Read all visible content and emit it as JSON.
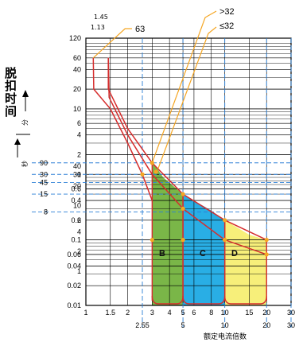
{
  "chart_data": {
    "type": "line",
    "title": "",
    "xlabel": "额定电流倍数",
    "ylabel": "脱扣时间",
    "ylabel_units": {
      "minutes": "分",
      "seconds": "秒"
    },
    "x_scale": "log",
    "y_scale": "log",
    "xlim": [
      1,
      30
    ],
    "ylim": [
      0.01,
      120
    ],
    "x_ticks": [
      1,
      1.5,
      2,
      3,
      4,
      5,
      6,
      8,
      10,
      15,
      20,
      30
    ],
    "x_tick_labels": [
      "1",
      "1.5",
      "2",
      "3",
      "4",
      "5",
      "6",
      "8",
      "10",
      "15",
      "20",
      "30"
    ],
    "y_ticks": [
      120,
      60,
      40,
      20,
      10,
      6,
      4,
      2,
      1,
      0.6,
      0.4,
      0.2,
      0.1,
      0.06,
      0.04,
      0.02,
      0.01
    ],
    "y_tick_labels": [
      "120",
      "60",
      "40",
      "20",
      "10",
      "6",
      "4",
      "2",
      "1",
      "0.6",
      "0.4",
      "0.2",
      "0.1",
      "0.06",
      "0.04",
      "0.02",
      "0.01"
    ],
    "y_ticks_seconds": [
      40,
      30,
      20,
      10,
      6,
      4,
      2,
      1
    ],
    "y_ticks_seconds_labels": [
      "40",
      "30",
      "20",
      "10",
      "6",
      "4",
      "2",
      "1"
    ],
    "minutes_marks": [
      {
        "label": "90",
        "y": 1.5
      },
      {
        "label": "45",
        "y": 0.75
      }
    ],
    "seconds_marks": [
      {
        "label": "30",
        "y": 30
      },
      {
        "label": "15",
        "y": 15
      },
      {
        "label": "8",
        "y": 8
      }
    ],
    "sub_axis_labels": [
      {
        "label": "2.55",
        "x": 2.55
      },
      {
        "label": "5",
        "x": 5
      },
      {
        "label": "10",
        "x": 10
      },
      {
        "label": "20",
        "x": 20
      },
      {
        "label": "30",
        "x": 30
      }
    ],
    "top_labels": [
      {
        "label": "1.45",
        "x": 1.45
      },
      {
        "label": "1.13",
        "x": 1.13
      }
    ],
    "annotations": [
      {
        "text": "63"
      },
      {
        "text": ">32"
      },
      {
        "text": "≤32"
      }
    ],
    "zones": [
      {
        "name": "B",
        "x_from": 3,
        "x_to": 5,
        "color": "#7ab648"
      },
      {
        "name": "C",
        "x_from": 5,
        "x_to": 10,
        "color": "#29aee5"
      },
      {
        "name": "D",
        "x_from": 10,
        "x_to": 20,
        "color": "#f7ef7a"
      }
    ],
    "series": [
      {
        "points": [
          [
            1.13,
            60
          ],
          [
            1.14,
            20
          ],
          [
            1.5,
            10
          ],
          [
            2,
            3
          ],
          [
            2.55,
            1
          ],
          [
            3,
            0.4
          ]
        ]
      },
      {
        "points": [
          [
            1.45,
            60
          ],
          [
            1.45,
            20
          ],
          [
            2,
            5
          ],
          [
            3,
            1.5
          ],
          [
            5,
            0.5
          ],
          [
            10,
            0.2
          ],
          [
            20,
            0.1
          ]
        ]
      },
      {
        "points": [
          [
            1.45,
            60
          ],
          [
            1.47,
            15
          ],
          [
            2,
            4
          ],
          [
            3,
            1
          ],
          [
            5,
            0.3
          ],
          [
            10,
            0.1
          ],
          [
            20,
            0.06
          ]
        ]
      }
    ],
    "grid": true,
    "legend": "none"
  }
}
